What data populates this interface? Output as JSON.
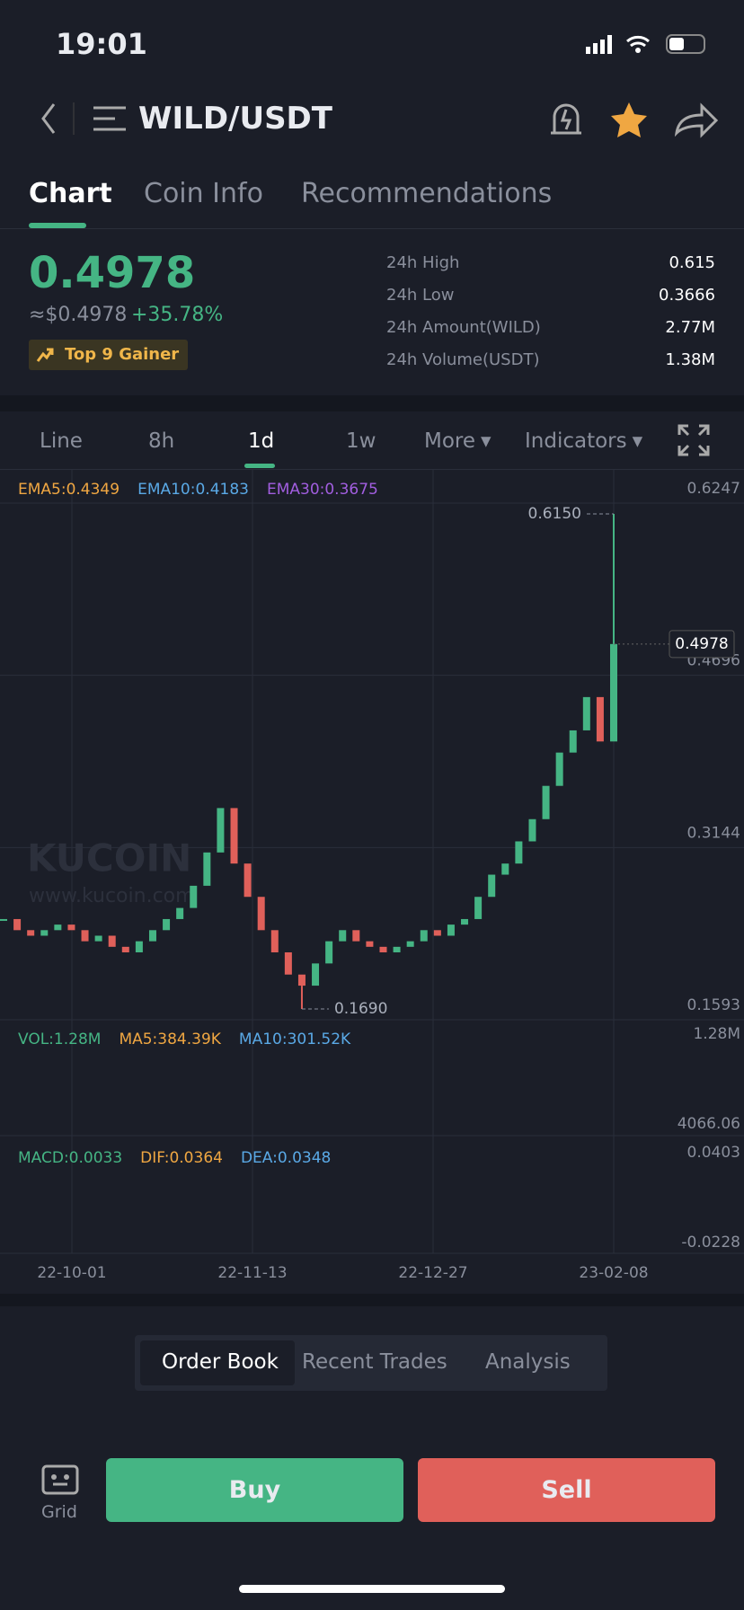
{
  "status": {
    "time": "19:01"
  },
  "header": {
    "pair": "WILD/USDT"
  },
  "tabs": [
    "Chart",
    "Coin Info",
    "Recommendations"
  ],
  "price": {
    "last": "0.4978",
    "fiat": "≈$0.4978",
    "change": "+35.78%",
    "badge": "Top 9 Gainer"
  },
  "stats": [
    {
      "label": "24h High",
      "value": "0.615"
    },
    {
      "label": "24h Low",
      "value": "0.3666"
    },
    {
      "label": "24h Amount(WILD)",
      "value": "2.77M"
    },
    {
      "label": "24h Volume(USDT)",
      "value": "1.38M"
    }
  ],
  "intervals": [
    "Line",
    "8h",
    "1d",
    "1w",
    "More",
    "Indicators"
  ],
  "chart_data": {
    "type": "candlestick",
    "indicators": [
      {
        "name": "EMA5:0.4349",
        "color": "#f0a742"
      },
      {
        "name": "EMA10:0.4183",
        "color": "#5aa9e6"
      },
      {
        "name": "EMA30:0.3675",
        "color": "#a25ee0"
      }
    ],
    "ylim": [
      0.1593,
      0.6547
    ],
    "yticks": [
      0.6247,
      0.4696,
      0.3144,
      0.1593
    ],
    "close": [
      0.25,
      0.24,
      0.235,
      0.24,
      0.245,
      0.24,
      0.23,
      0.235,
      0.225,
      0.22,
      0.23,
      0.24,
      0.25,
      0.26,
      0.28,
      0.31,
      0.35,
      0.3,
      0.27,
      0.24,
      0.22,
      0.2,
      0.19,
      0.21,
      0.23,
      0.24,
      0.23,
      0.225,
      0.22,
      0.225,
      0.23,
      0.24,
      0.235,
      0.245,
      0.25,
      0.27,
      0.29,
      0.3,
      0.32,
      0.34,
      0.37,
      0.4,
      0.42,
      0.45,
      0.41,
      0.4978
    ],
    "up_color": "#45b584",
    "down_color": "#e0605a",
    "high": {
      "value": 0.615,
      "label": "0.6150"
    },
    "low": {
      "value": 0.169,
      "label": "0.1690"
    },
    "last": 0.4978,
    "watermark": [
      "KUCOIN",
      "www.kucoin.com"
    ],
    "xticks": [
      "22-10-01",
      "22-11-13",
      "22-12-27",
      "23-02-08"
    ],
    "volume": {
      "labels": [
        {
          "name": "VOL:1.28M",
          "color": "#45b584"
        },
        {
          "name": "MA5:384.39K",
          "color": "#f0a742"
        },
        {
          "name": "MA10:301.52K",
          "color": "#5aa9e6"
        }
      ],
      "ticks": [
        "1.28M",
        "4066.06"
      ]
    },
    "macd": {
      "labels": [
        {
          "name": "MACD:0.0033",
          "color": "#45b584"
        },
        {
          "name": "DIF:0.0364",
          "color": "#f0a742"
        },
        {
          "name": "DEA:0.0348",
          "color": "#5aa9e6"
        }
      ],
      "ticks": [
        "0.0403",
        "-0.0228"
      ]
    }
  },
  "order_tabs": [
    "Order Book",
    "Recent Trades",
    "Analysis"
  ],
  "actions": {
    "grid": "Grid",
    "buy": "Buy",
    "sell": "Sell"
  }
}
